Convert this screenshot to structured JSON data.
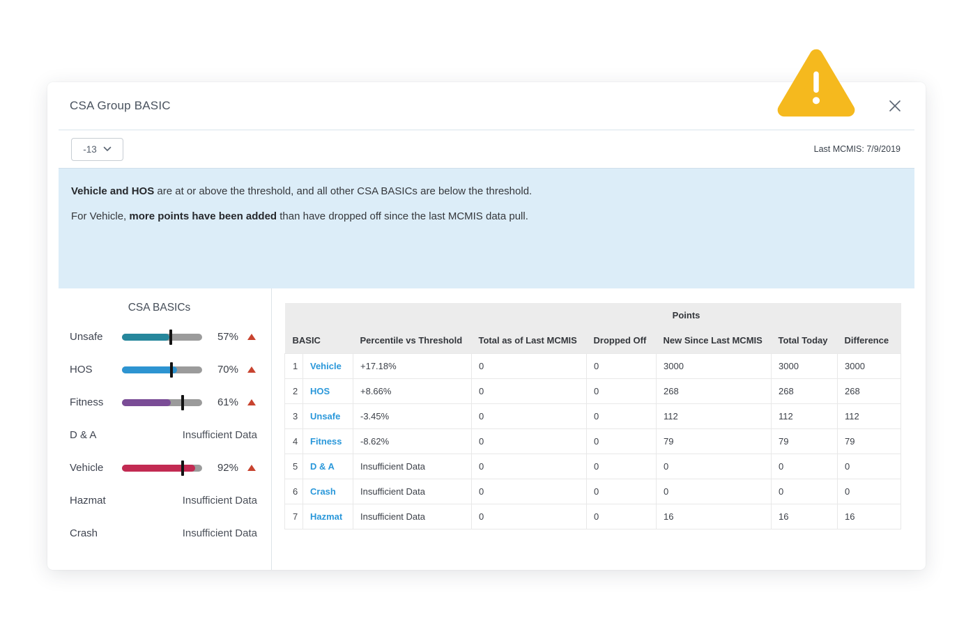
{
  "modal": {
    "title": "CSA Group BASIC"
  },
  "toolbar": {
    "dropdown_value": "-13",
    "last_mcmis": "Last MCMIS: 7/9/2019"
  },
  "info": {
    "line1_bold": "Vehicle and HOS",
    "line1_rest": " are at or above the threshold, and all other CSA BASICs are below the threshold.",
    "line2_pre": "For Vehicle, ",
    "line2_bold": "more points have been added",
    "line2_rest": " than have dropped off since the last MCMIS data pull."
  },
  "basics_panel": {
    "title": "CSA BASICs",
    "items": [
      {
        "label": "Unsafe",
        "value": "57%",
        "fill_pct": 59,
        "marker_pct": 61,
        "color": "#26879c",
        "trend": "up"
      },
      {
        "label": "HOS",
        "value": "70%",
        "fill_pct": 69,
        "marker_pct": 62,
        "color": "#2d94d1",
        "trend": "up"
      },
      {
        "label": "Fitness",
        "value": "61%",
        "fill_pct": 61,
        "marker_pct": 76,
        "color": "#7a4c96",
        "trend": "up"
      },
      {
        "label": "D & A",
        "value": "Insufficient Data",
        "insufficient": true
      },
      {
        "label": "Vehicle",
        "value": "92%",
        "fill_pct": 91,
        "marker_pct": 76,
        "color": "#c22a52",
        "trend": "up"
      },
      {
        "label": "Hazmat",
        "value": "Insufficient Data",
        "insufficient": true
      },
      {
        "label": "Crash",
        "value": "Insufficient Data",
        "insufficient": true
      }
    ]
  },
  "table": {
    "group_header": "Points",
    "columns": [
      "BASIC",
      "Percentile vs Threshold",
      "Total as of Last MCMIS",
      "Dropped Off",
      "New Since Last MCMIS",
      "Total Today",
      "Difference"
    ],
    "rows": [
      {
        "num": "1",
        "basic": "Vehicle",
        "percentile": "+17.18%",
        "total_last": "0",
        "dropped": "0",
        "new_since": "3000",
        "total_today": "3000",
        "difference": "3000",
        "diff_color": "red"
      },
      {
        "num": "2",
        "basic": "HOS",
        "percentile": "+8.66%",
        "total_last": "0",
        "dropped": "0",
        "new_since": "268",
        "total_today": "268",
        "difference": "268",
        "diff_color": "red"
      },
      {
        "num": "3",
        "basic": "Unsafe",
        "percentile": "-3.45%",
        "total_last": "0",
        "dropped": "0",
        "new_since": "112",
        "total_today": "112",
        "difference": "112",
        "diff_color": "red"
      },
      {
        "num": "4",
        "basic": "Fitness",
        "percentile": "-8.62%",
        "total_last": "0",
        "dropped": "0",
        "new_since": "79",
        "total_today": "79",
        "difference": "79",
        "diff_color": "red"
      },
      {
        "num": "5",
        "basic": "D & A",
        "percentile": "Insufficient Data",
        "total_last": "0",
        "dropped": "0",
        "new_since": "0",
        "total_today": "0",
        "difference": "0",
        "diff_color": "green"
      },
      {
        "num": "6",
        "basic": "Crash",
        "percentile": "Insufficient Data",
        "total_last": "0",
        "dropped": "0",
        "new_since": "0",
        "total_today": "0",
        "difference": "0",
        "diff_color": "green"
      },
      {
        "num": "7",
        "basic": "Hazmat",
        "percentile": "Insufficient Data",
        "total_last": "0",
        "dropped": "0",
        "new_since": "16",
        "total_today": "16",
        "difference": "16",
        "diff_color": "red"
      }
    ]
  },
  "icons": {
    "warning": "warning-triangle-icon",
    "close": "close-icon",
    "chevron": "chevron-down-icon",
    "trend": "trend-up-icon"
  },
  "colors": {
    "warning_amber": "#f5b91e",
    "info_bg": "#dcedf8",
    "link_blue": "#2b98da",
    "bar_track": "#9b9b9b",
    "bar_unsafe": "#26879c",
    "bar_hos": "#2d94d1",
    "bar_fitness": "#7a4c96",
    "bar_vehicle": "#c22a52",
    "trend_red": "#c8432f",
    "diff_red": "#e87c80",
    "diff_green": "#8bc34a",
    "header_bg": "#ececec"
  }
}
